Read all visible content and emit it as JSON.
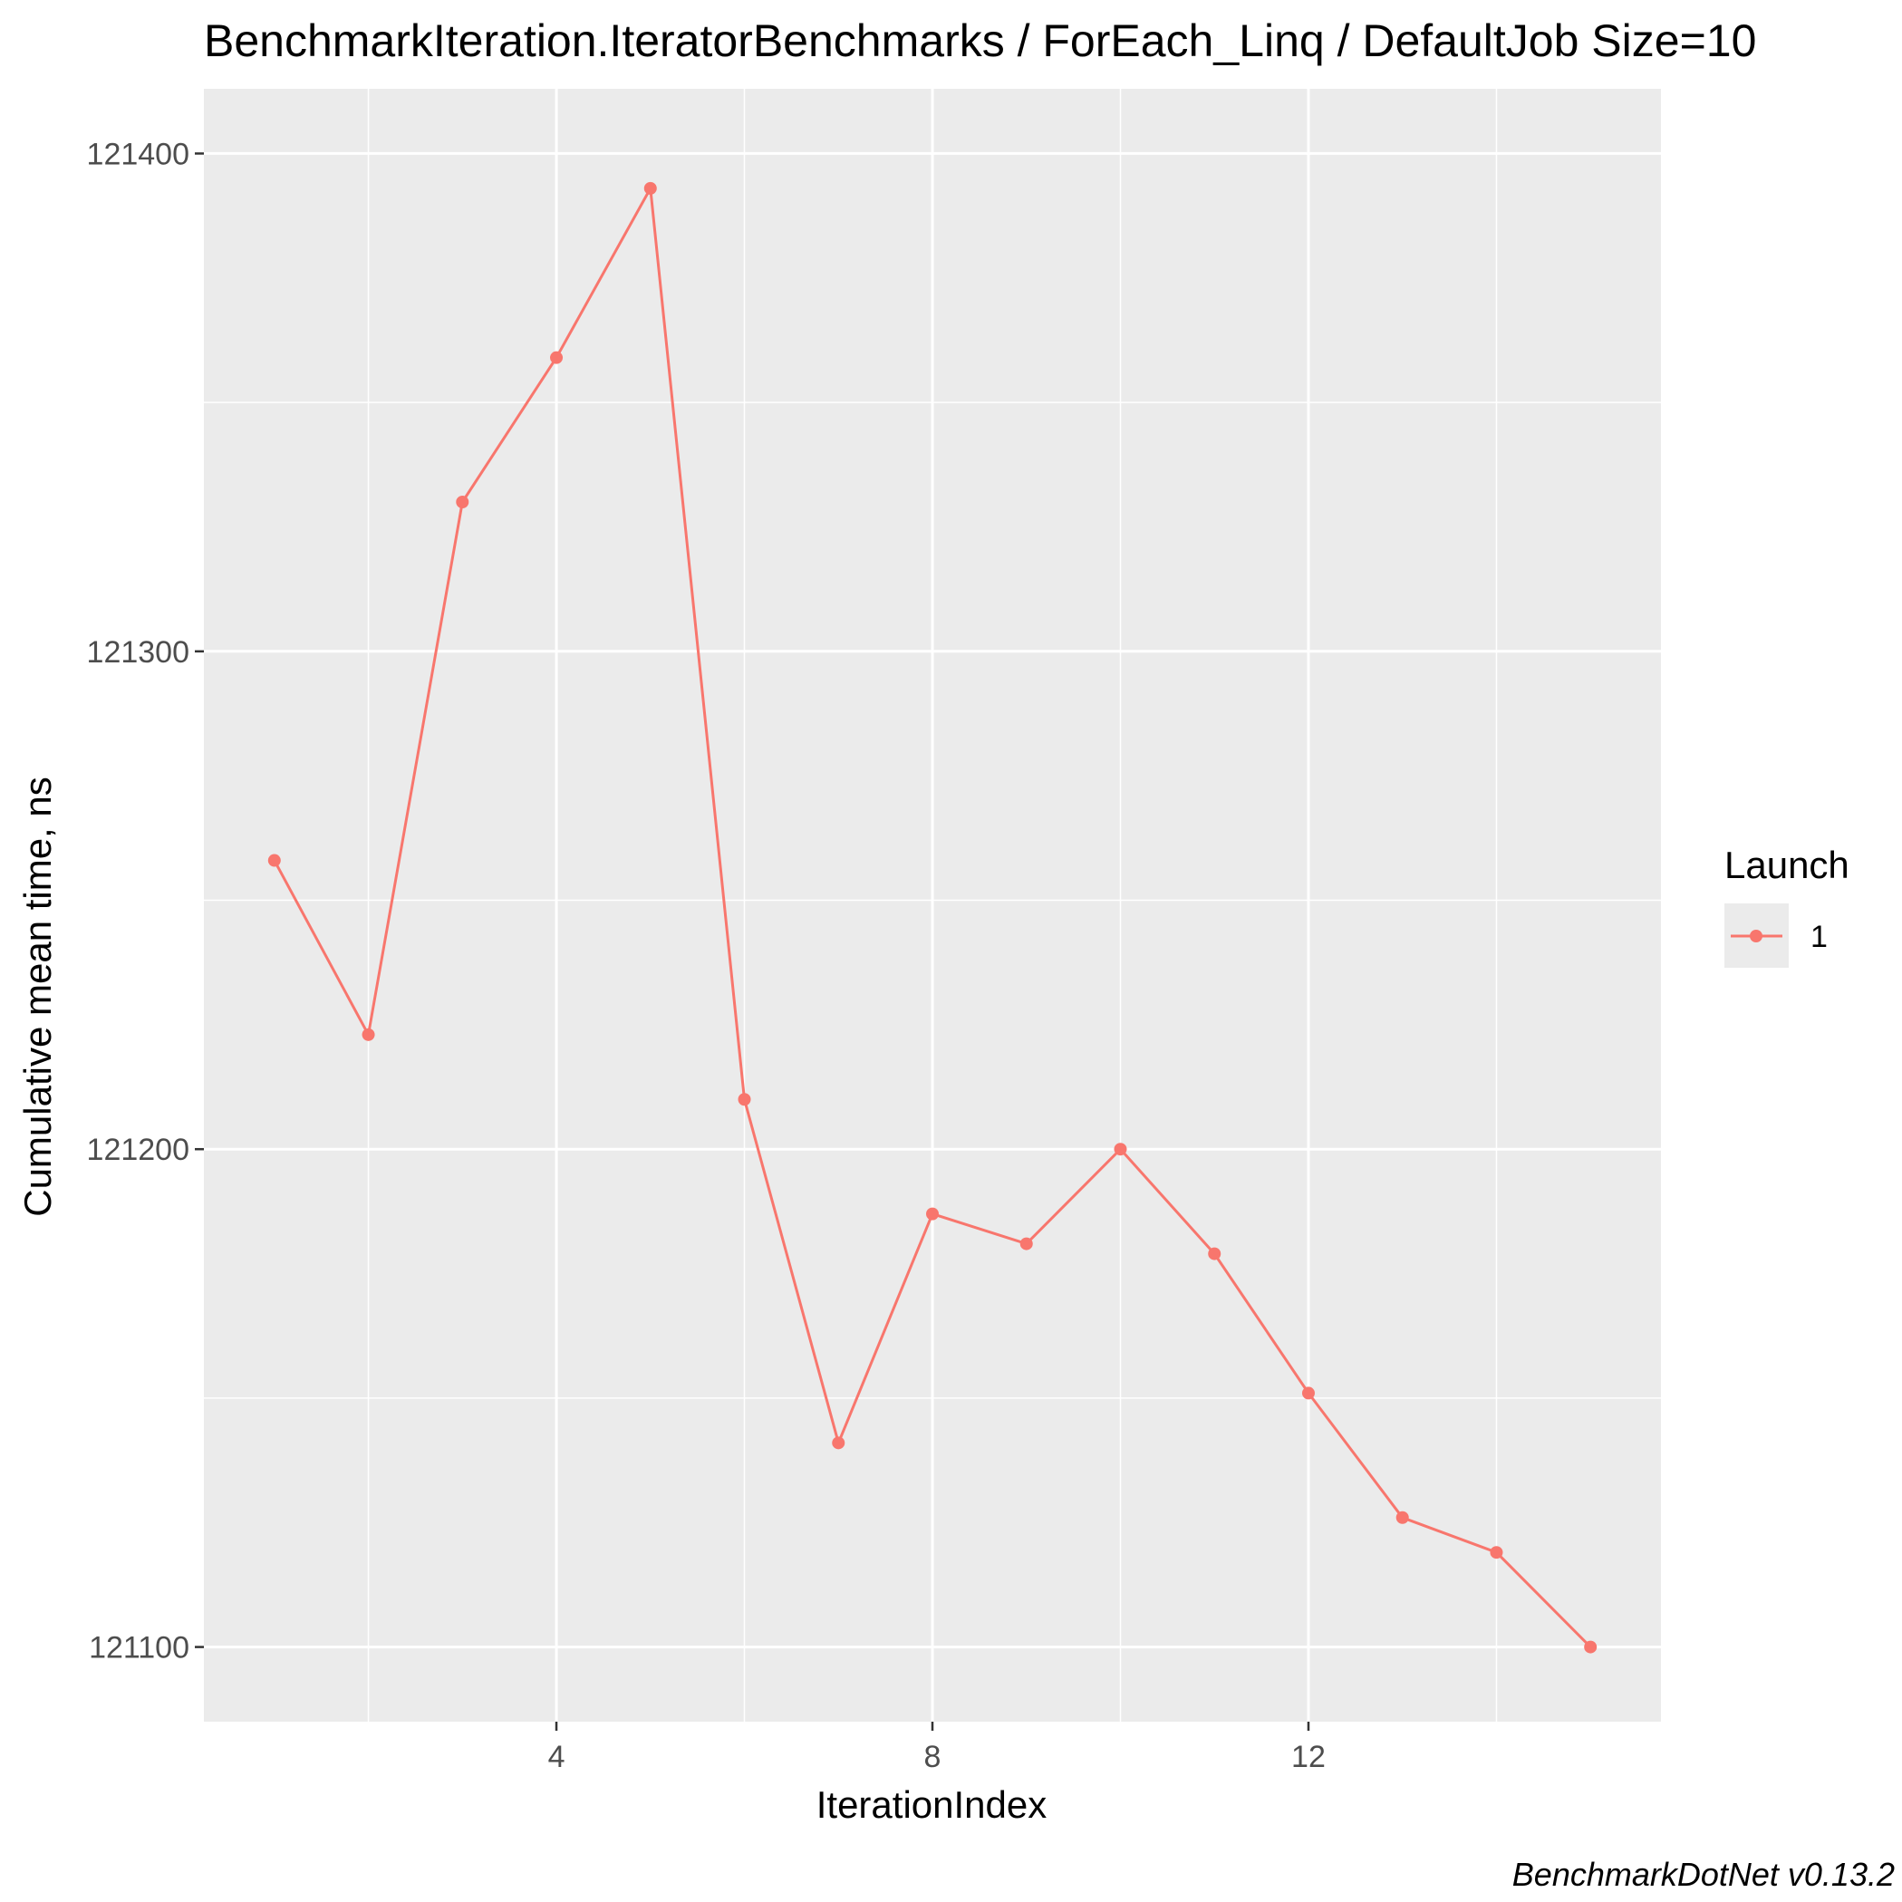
{
  "chart_data": {
    "type": "line",
    "title": "BenchmarkIteration.IteratorBenchmarks / ForEach_Linq / DefaultJob Size=10",
    "xlabel": "IterationIndex",
    "ylabel": "Cumulative mean time, ns",
    "caption": "BenchmarkDotNet v0.13.2",
    "x_ticks": [
      4,
      8,
      12
    ],
    "x_tick_labels": [
      "4",
      "8",
      "12"
    ],
    "y_ticks": [
      121100,
      121200,
      121300,
      121400
    ],
    "y_tick_labels": [
      "121100",
      "121200",
      "121300",
      "121400"
    ],
    "xlim": [
      0.25,
      15.75
    ],
    "ylim": [
      121085,
      121413
    ],
    "grid": true,
    "background": "#ebebeb",
    "legend": {
      "title": "Launch",
      "position": "right"
    },
    "series": [
      {
        "name": "1",
        "color": "#f8766d",
        "x": [
          1,
          2,
          3,
          4,
          5,
          6,
          7,
          8,
          9,
          10,
          11,
          12,
          13,
          14,
          15
        ],
        "values": [
          121258,
          121223,
          121330,
          121359,
          121393,
          121210,
          121141,
          121187,
          121181,
          121200,
          121179,
          121151,
          121126,
          121119,
          121100
        ]
      }
    ]
  }
}
